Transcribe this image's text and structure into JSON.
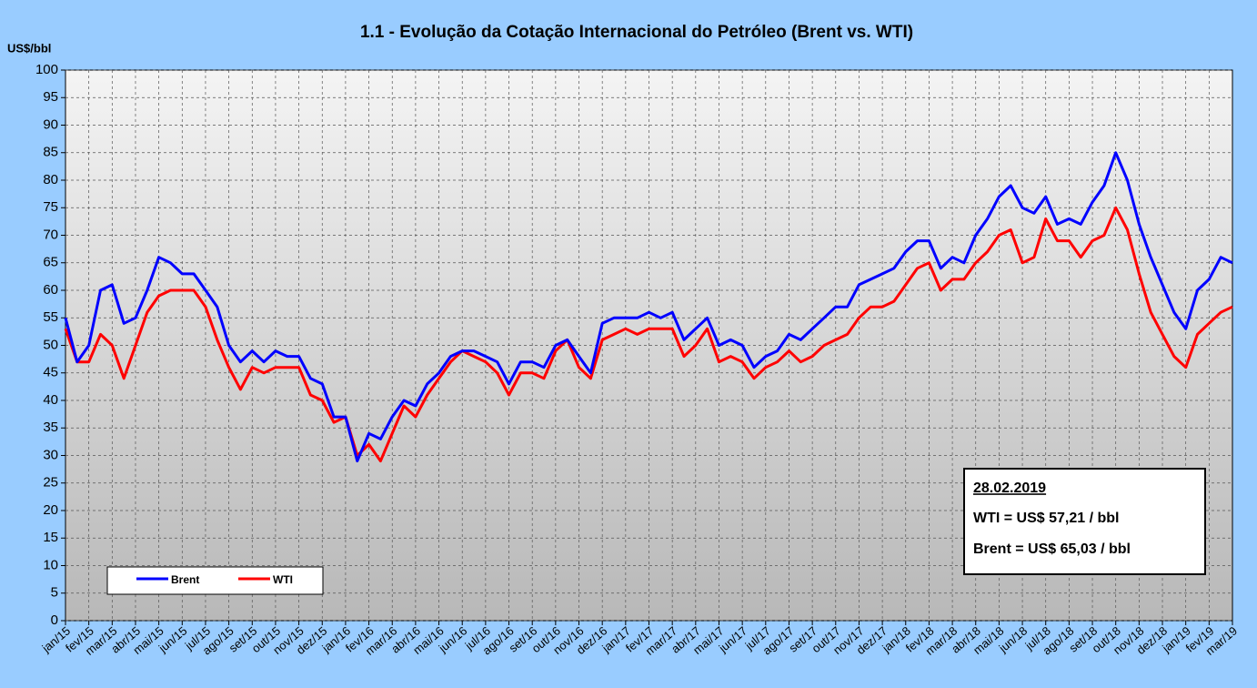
{
  "chart_data": {
    "type": "line",
    "title": "1.1 - Evolução da Cotação Internacional do Petróleo (Brent vs. WTI)",
    "y_label": "US$/bbl",
    "categories": [
      "jan/15",
      null,
      "fev/15",
      null,
      "mar/15",
      null,
      "abr/15",
      null,
      "mai/15",
      null,
      "jun/15",
      null,
      "jul/15",
      null,
      "ago/15",
      null,
      "set/15",
      null,
      "out/15",
      null,
      "nov/15",
      null,
      "dez/15",
      null,
      "jan/16",
      null,
      "fev/16",
      null,
      "mar/16",
      null,
      "abr/16",
      null,
      "mai/16",
      null,
      "jun/16",
      null,
      "jul/16",
      null,
      "ago/16",
      null,
      "set/16",
      null,
      "out/16",
      null,
      "nov/16",
      null,
      "dez/16",
      null,
      "jan/17",
      null,
      "fev/17",
      null,
      "mar/17",
      null,
      "abr/17",
      null,
      "mai/17",
      null,
      "jun/17",
      null,
      "jul/17",
      null,
      "ago/17",
      null,
      "set/17",
      null,
      "out/17",
      null,
      "nov/17",
      null,
      "dez/17",
      null,
      "jan/18",
      null,
      "fev/18",
      null,
      "mar/18",
      null,
      "abr/18",
      null,
      "mai/18",
      null,
      "jun/18",
      null,
      "jul/18",
      null,
      "ago/18",
      null,
      "set/18",
      null,
      "out/18",
      null,
      "nov/18",
      null,
      "dez/18",
      null,
      "jan/19",
      null,
      "fev/19",
      null,
      "mar/19"
    ],
    "series": [
      {
        "name": "Brent",
        "color": "#0000ff",
        "values": [
          55,
          47,
          50,
          60,
          61,
          54,
          55,
          60,
          66,
          65,
          63,
          63,
          60,
          57,
          50,
          47,
          49,
          47,
          49,
          48,
          48,
          44,
          43,
          37,
          37,
          29,
          34,
          33,
          37,
          40,
          39,
          43,
          45,
          48,
          49,
          49,
          48,
          47,
          43,
          47,
          47,
          46,
          50,
          51,
          48,
          45,
          54,
          55,
          55,
          55,
          56,
          55,
          56,
          51,
          53,
          55,
          50,
          51,
          50,
          46,
          48,
          49,
          52,
          51,
          53,
          55,
          57,
          57,
          61,
          62,
          63,
          64,
          67,
          69,
          69,
          64,
          66,
          65,
          70,
          73,
          77,
          79,
          75,
          74,
          77,
          72,
          73,
          72,
          76,
          79,
          85,
          80,
          72,
          66,
          61,
          56,
          53,
          60,
          62,
          66,
          65
        ]
      },
      {
        "name": "WTI",
        "color": "#ff0000",
        "values": [
          53,
          47,
          47,
          52,
          50,
          44,
          50,
          56,
          59,
          60,
          60,
          60,
          57,
          51,
          46,
          42,
          46,
          45,
          46,
          46,
          46,
          41,
          40,
          36,
          37,
          30,
          32,
          29,
          34,
          39,
          37,
          41,
          44,
          47,
          49,
          48,
          47,
          45,
          41,
          45,
          45,
          44,
          49,
          51,
          46,
          44,
          51,
          52,
          53,
          52,
          53,
          53,
          53,
          48,
          50,
          53,
          47,
          48,
          47,
          44,
          46,
          47,
          49,
          47,
          48,
          50,
          51,
          52,
          55,
          57,
          57,
          58,
          61,
          64,
          65,
          60,
          62,
          62,
          65,
          67,
          70,
          71,
          65,
          66,
          73,
          69,
          69,
          66,
          69,
          70,
          75,
          71,
          63,
          56,
          52,
          48,
          46,
          52,
          54,
          56,
          57
        ]
      }
    ],
    "ylim": [
      0,
      100
    ],
    "yticks": [
      0,
      5,
      10,
      15,
      20,
      25,
      30,
      35,
      40,
      45,
      50,
      55,
      60,
      65,
      70,
      75,
      80,
      85,
      90,
      95,
      100
    ],
    "grid": true,
    "legend": "lower left",
    "annotations": [
      "28.02.2019",
      "WTI = US$ 57,21 / bbl",
      "Brent = US$ 65,03 / bbl"
    ]
  }
}
